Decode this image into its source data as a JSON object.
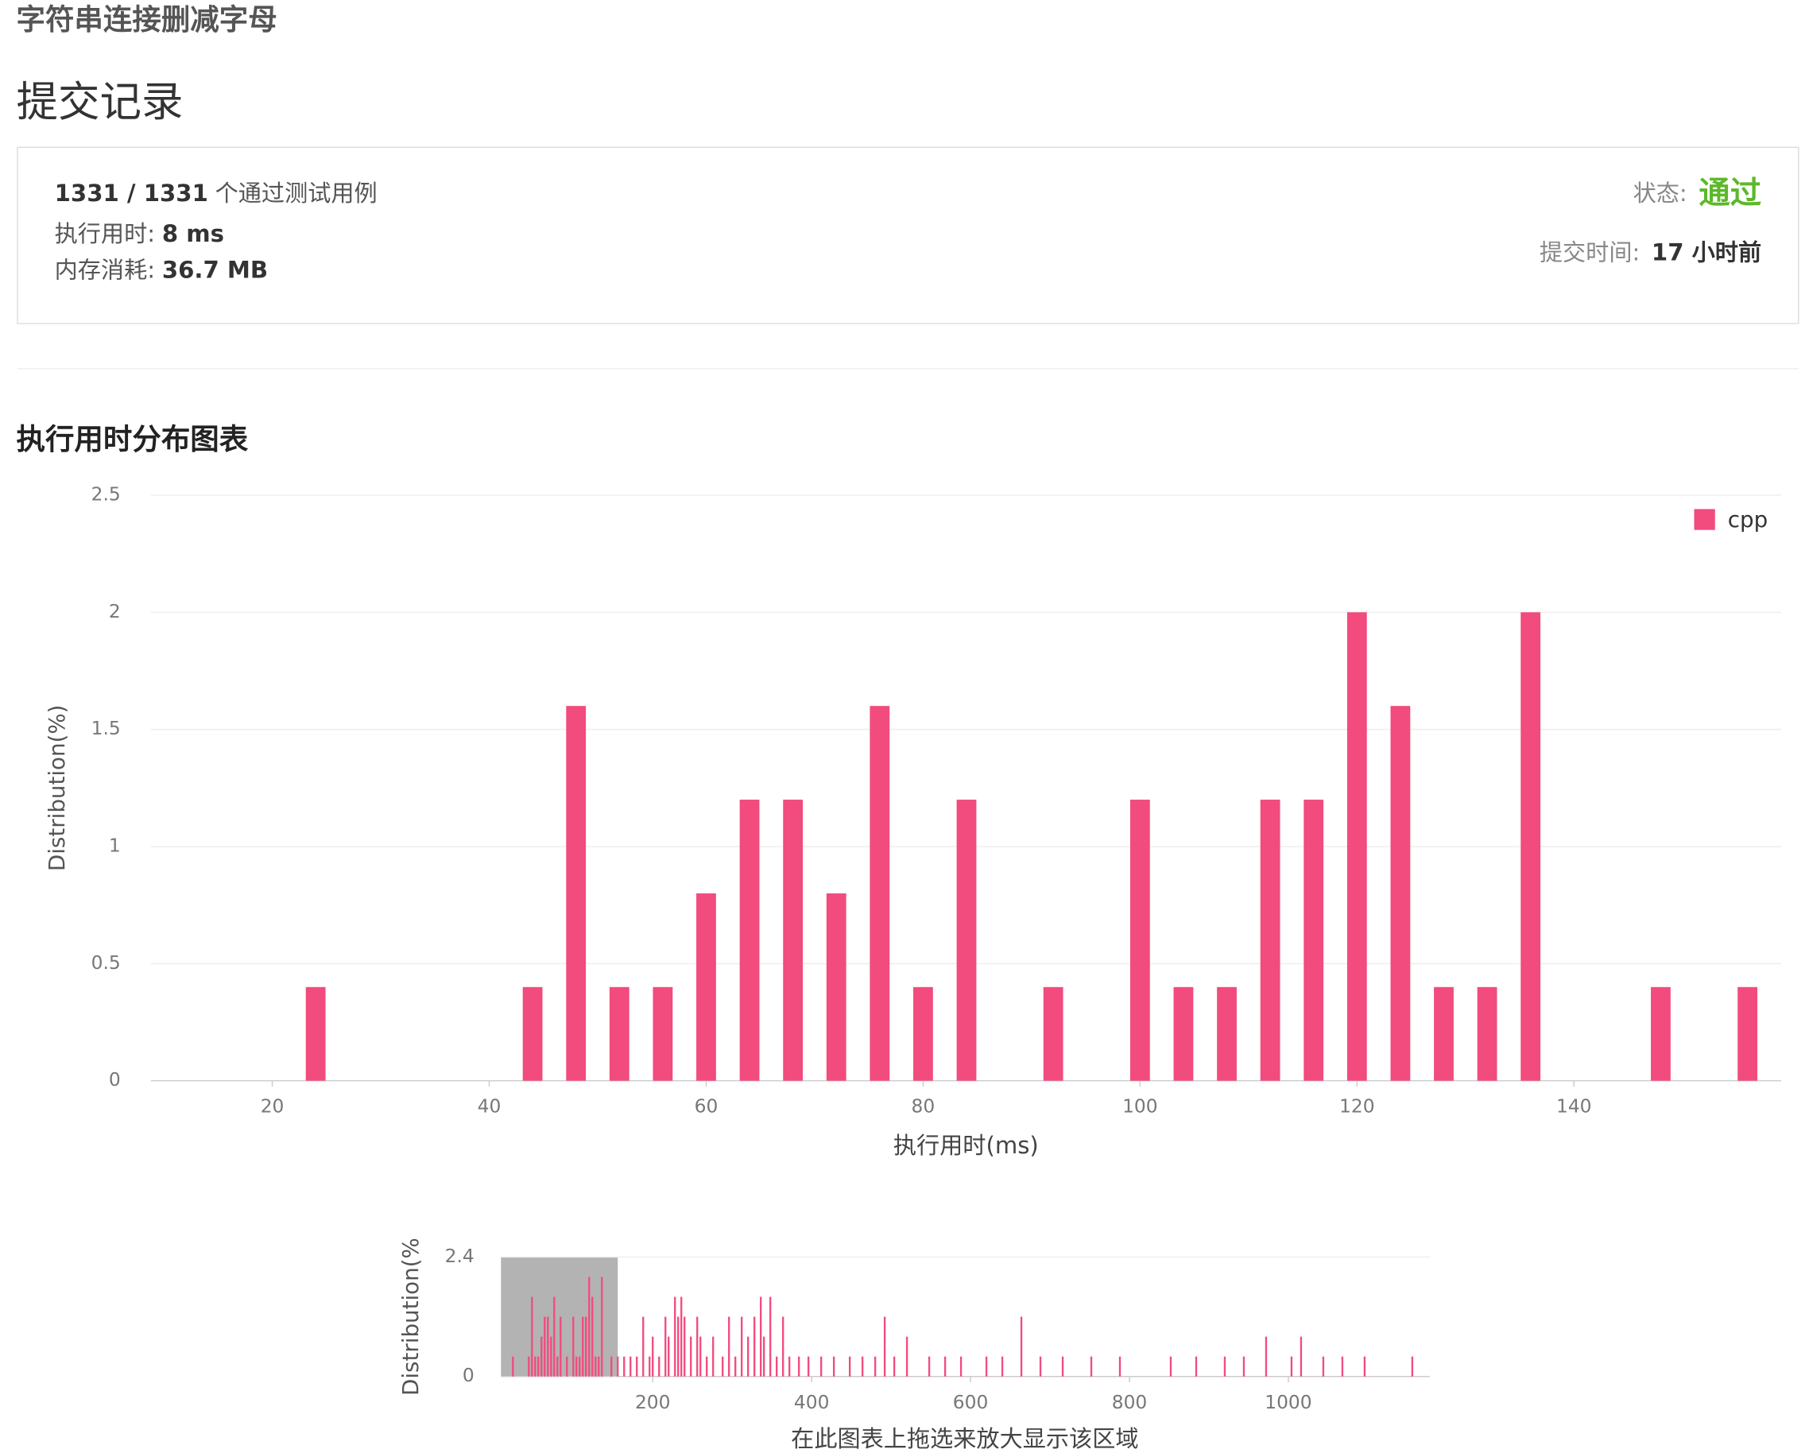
{
  "header": {
    "problem_title": "字符串连接删减字母",
    "section_title": "提交记录"
  },
  "submission": {
    "passed": "1331 / 1331",
    "passed_label": "个通过测试用例",
    "runtime_label": "执行用时:",
    "runtime": "8 ms",
    "memory_label": "内存消耗:",
    "memory": "36.7 MB",
    "status_label": "状态:",
    "status": "通过",
    "time_label": "提交时间:",
    "time": "17 小时前"
  },
  "chart_title": "执行用时分布图表",
  "chart_data": [
    {
      "type": "bar",
      "x": [
        24,
        44,
        48,
        52,
        56,
        60,
        64,
        68,
        72,
        76,
        80,
        84,
        92,
        100,
        104,
        108,
        112,
        116,
        120,
        124,
        128,
        132,
        136,
        148,
        156
      ],
      "series": [
        {
          "name": "cpp",
          "color": "#f24b7e",
          "values": [
            0.4,
            0.4,
            1.6,
            0.4,
            0.4,
            0.8,
            1.2,
            1.2,
            0.8,
            1.6,
            0.4,
            1.2,
            0.4,
            1.2,
            0.4,
            0.4,
            1.2,
            1.2,
            2.0,
            1.6,
            0.4,
            0.4,
            2.0,
            0.4,
            0.4
          ]
        }
      ],
      "xlim": [
        8.8,
        159.1
      ],
      "ylim": [
        0,
        2.5
      ],
      "xticks": [
        20,
        40,
        60,
        80,
        100,
        120,
        140
      ],
      "yticks": [
        0,
        0.5,
        1,
        1.5,
        2,
        2.5
      ],
      "xlabel": "执行用时(ms)",
      "ylabel": "Distribution(%)",
      "grid": true,
      "legend": "upper right"
    },
    {
      "type": "bar",
      "x": [
        24,
        44,
        48,
        52,
        56,
        60,
        64,
        68,
        72,
        76,
        80,
        84,
        92,
        100,
        104,
        108,
        112,
        116,
        120,
        124,
        128,
        132,
        136,
        148,
        156,
        164,
        172,
        180,
        188,
        196,
        200,
        208,
        216,
        220,
        228,
        232,
        236,
        240,
        248,
        256,
        260,
        268,
        276,
        288,
        296,
        304,
        312,
        320,
        328,
        336,
        340,
        348,
        356,
        364,
        372,
        384,
        396,
        412,
        428,
        448,
        464,
        480,
        492,
        504,
        520,
        548,
        568,
        588,
        620,
        640,
        664,
        688,
        716,
        752,
        788,
        852,
        884,
        920,
        944,
        972,
        1004,
        1016,
        1044,
        1068,
        1096,
        1156
      ],
      "values": [
        0.4,
        0.4,
        1.6,
        0.4,
        0.4,
        0.8,
        1.2,
        1.2,
        0.8,
        1.6,
        0.4,
        1.2,
        0.4,
        1.2,
        0.4,
        0.4,
        1.2,
        1.2,
        2.0,
        1.6,
        0.4,
        0.4,
        2.0,
        0.4,
        0.4,
        0.4,
        0.4,
        0.4,
        1.2,
        0.4,
        0.8,
        0.4,
        1.2,
        0.8,
        1.6,
        1.2,
        1.6,
        1.2,
        0.8,
        1.2,
        0.8,
        0.4,
        0.8,
        0.4,
        1.2,
        0.4,
        1.2,
        0.8,
        1.2,
        1.6,
        0.8,
        1.6,
        0.4,
        1.2,
        0.4,
        0.4,
        0.4,
        0.4,
        0.4,
        0.4,
        0.4,
        0.4,
        1.2,
        0.4,
        0.8,
        0.4,
        0.4,
        0.4,
        0.4,
        0.4,
        1.2,
        0.4,
        0.4,
        0.4,
        0.4,
        0.4,
        0.4,
        0.4,
        0.4,
        0.8,
        0.4,
        0.8,
        0.4,
        0.4,
        0.4,
        0.4
      ],
      "color": "#f24b7e",
      "xlim": [
        9,
        1178
      ],
      "ylim": [
        0,
        2.4
      ],
      "xticks": [
        200,
        400,
        600,
        800,
        1000
      ],
      "yticks": [
        0,
        2.4
      ],
      "ylabel": "Distribution(%",
      "caption": "在此图表上拖选来放大显示该区域",
      "selection": [
        9,
        156
      ]
    }
  ]
}
